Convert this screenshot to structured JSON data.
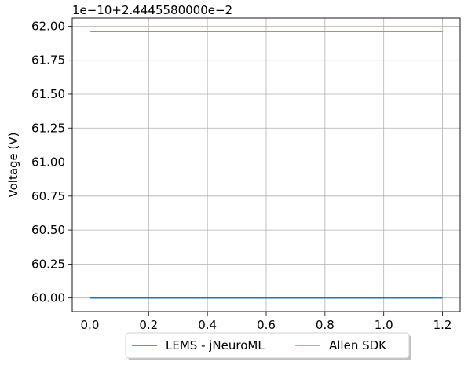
{
  "chart_data": {
    "type": "line",
    "title": "",
    "offset_text": "1e−10+2.4445580000e−2",
    "xlabel": "",
    "ylabel": "Voltage (V)",
    "xlim": [
      -0.06,
      1.26
    ],
    "ylim": [
      59.9,
      62.06
    ],
    "x_ticks": [
      0.0,
      0.2,
      0.4,
      0.6,
      0.8,
      1.0,
      1.2
    ],
    "x_tick_labels": [
      "0.0",
      "0.2",
      "0.4",
      "0.6",
      "0.8",
      "1.0",
      "1.2"
    ],
    "y_ticks": [
      60.0,
      60.25,
      60.5,
      60.75,
      61.0,
      61.25,
      61.5,
      61.75,
      62.0
    ],
    "y_tick_labels": [
      "60.00",
      "60.25",
      "60.50",
      "60.75",
      "61.00",
      "61.25",
      "61.50",
      "61.75",
      "62.00"
    ],
    "grid": true,
    "legend_position": "bottom-center-outside",
    "series": [
      {
        "name": "LEMS - jNeuroML",
        "color": "#1f77b4",
        "x": [
          0.0,
          1.2
        ],
        "y": [
          60.0,
          60.0
        ]
      },
      {
        "name": "Allen SDK",
        "color": "#ff7f0e",
        "x": [
          0.0,
          1.2
        ],
        "y": [
          61.96,
          61.96
        ]
      }
    ]
  }
}
